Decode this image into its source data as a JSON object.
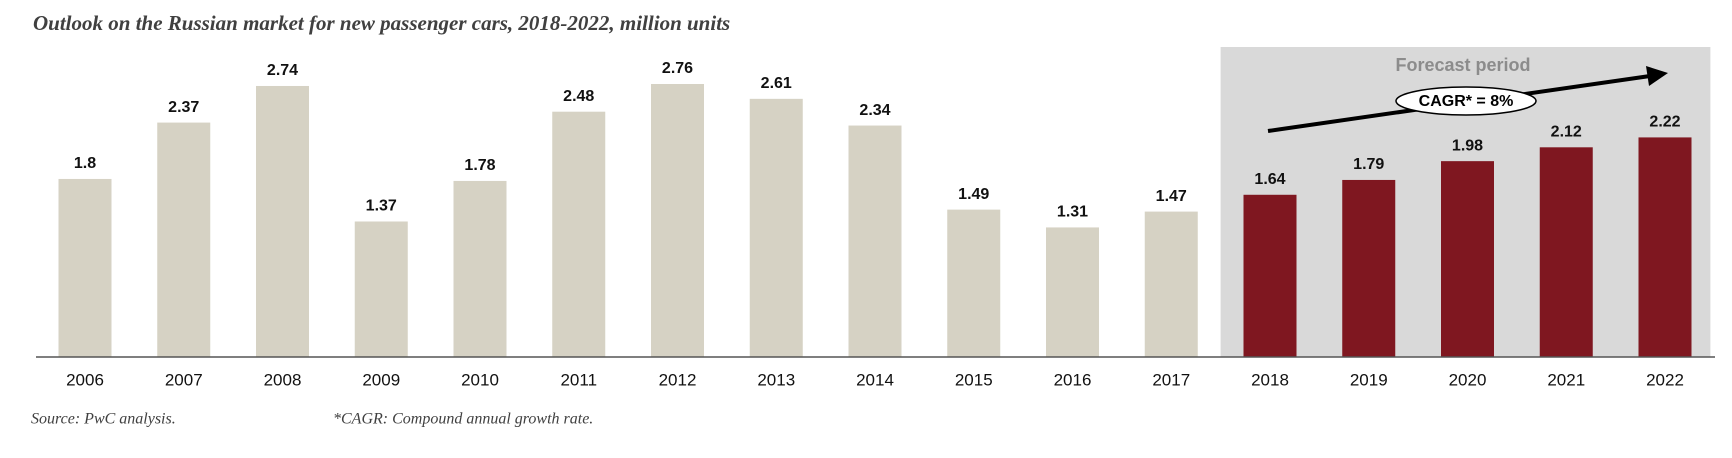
{
  "chart_data": {
    "type": "bar",
    "title": "Outlook on the Russian market for new passenger cars, 2018-2022, million units",
    "categories": [
      "2006",
      "2007",
      "2008",
      "2009",
      "2010",
      "2011",
      "2012",
      "2013",
      "2014",
      "2015",
      "2016",
      "2017",
      "2018",
      "2019",
      "2020",
      "2021",
      "2022"
    ],
    "series": [
      {
        "color": "#d6d2c4",
        "values": [
          1.8,
          2.37,
          2.74,
          1.37,
          1.78,
          2.48,
          2.76,
          2.61,
          2.34,
          1.49,
          1.31,
          1.47,
          null,
          null,
          null,
          null,
          null
        ]
      },
      {
        "color": "#7f1720",
        "background": "#d9d9d9",
        "values": [
          null,
          null,
          null,
          null,
          null,
          null,
          null,
          null,
          null,
          null,
          null,
          null,
          1.64,
          1.79,
          1.98,
          2.12,
          2.22
        ]
      }
    ],
    "annotations": {
      "forecast": "Forecast period",
      "cagr": "CAGR* = 8%"
    },
    "source": "Source: PwC analysis.",
    "footnote": "*CAGR: Compound annual growth rate."
  }
}
